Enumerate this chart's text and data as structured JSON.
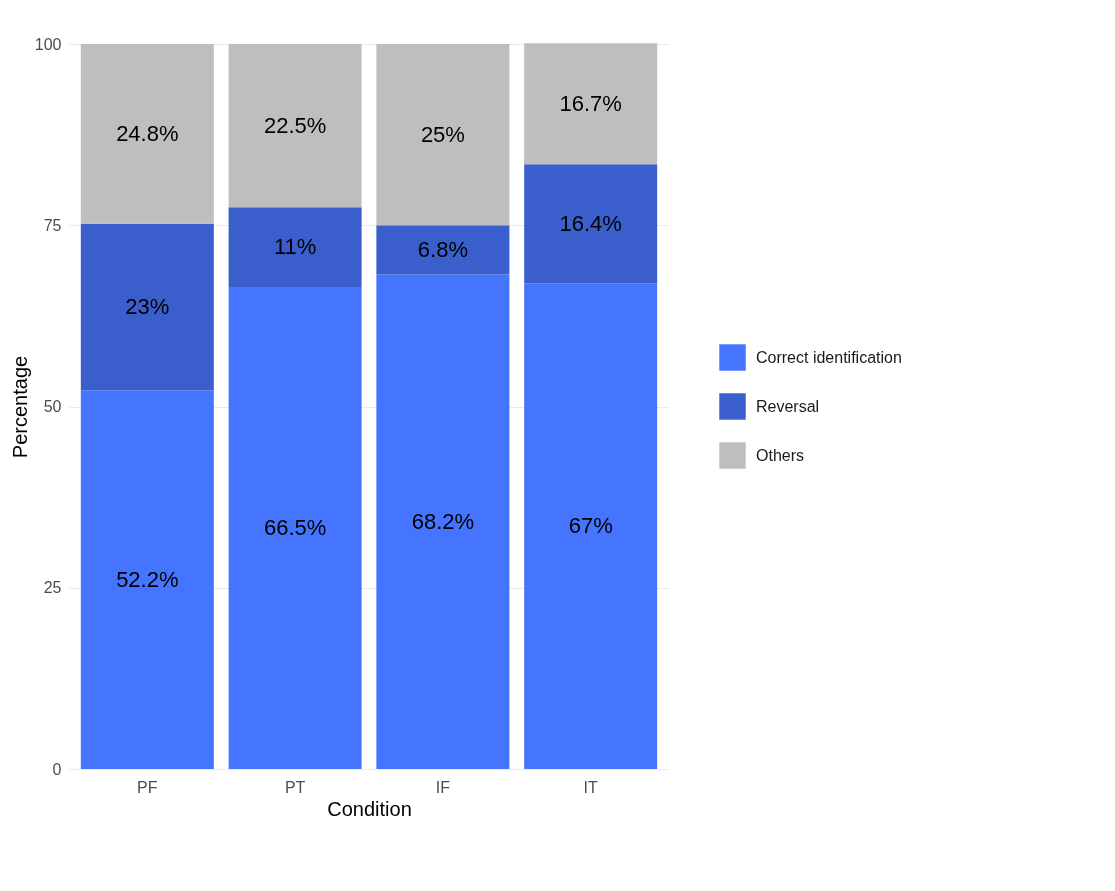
{
  "chart_data": {
    "type": "bar",
    "stacked": true,
    "xlabel": "Condition",
    "ylabel": "Percentage",
    "categories": [
      "PF",
      "PT",
      "IF",
      "IT"
    ],
    "series": [
      {
        "name": "Correct identification",
        "color": "#4575ff",
        "values": [
          52.2,
          66.5,
          68.2,
          67
        ],
        "value_labels": [
          "52.2%",
          "66.5%",
          "68.2%",
          "67%"
        ]
      },
      {
        "name": "Reversal",
        "color": "#3a5fcd",
        "values": [
          23,
          11,
          6.8,
          16.4
        ],
        "value_labels": [
          "23%",
          "11%",
          "6.8%",
          "16.4%"
        ]
      },
      {
        "name": "Others",
        "color": "#bebebe",
        "values": [
          24.8,
          22.5,
          25,
          16.7
        ],
        "value_labels": [
          "24.8%",
          "22.5%",
          "25%",
          "16.7%"
        ]
      }
    ],
    "ylim": [
      0,
      100
    ],
    "yticks": [
      0,
      25,
      50,
      75,
      100
    ],
    "grid": true,
    "legend": "right"
  }
}
